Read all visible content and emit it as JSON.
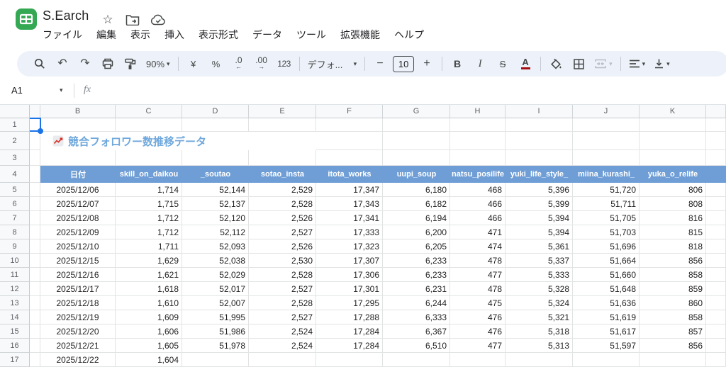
{
  "header": {
    "doc_title": "S.Earch",
    "menu_items": [
      "ファイル",
      "編集",
      "表示",
      "挿入",
      "表示形式",
      "データ",
      "ツール",
      "拡張機能",
      "ヘルプ"
    ],
    "icons": [
      "sheets-logo",
      "star-icon",
      "move-folder-icon",
      "cloud-status-icon"
    ]
  },
  "toolbar": {
    "zoom_level": "90%",
    "currency_label": "¥",
    "percent_label": "%",
    "decrease_decimal_label": ".0",
    "decrease_decimal_arrow": "←",
    "increase_decimal_label": ".00",
    "increase_decimal_arrow": "→",
    "more_formats_label": "123",
    "font_name": "デフォ...",
    "font_size_minus": "−",
    "font_size_value": "10",
    "font_size_plus": "+",
    "bold_label": "B",
    "italic_label": "I",
    "strikethrough_label": "S",
    "text_color_label": "A",
    "undo_glyph": "↶",
    "redo_glyph": "↷",
    "icons": [
      "search-icon",
      "undo-icon",
      "redo-icon",
      "print-icon",
      "paint-format-icon",
      "fill-color-icon",
      "borders-icon",
      "merge-cells-icon",
      "horizontal-align-icon",
      "vertical-align-icon"
    ]
  },
  "formula_bar": {
    "name_box_value": "A1",
    "fx_label": "fx"
  },
  "sheet": {
    "selected_cell": "A1",
    "visible_columns": [
      "B",
      "C",
      "D",
      "E",
      "F",
      "G",
      "H",
      "I",
      "J",
      "K"
    ],
    "visible_rows": [
      "1",
      "2",
      "3",
      "4",
      "5",
      "6",
      "7",
      "8",
      "9",
      "10",
      "11",
      "12",
      "13",
      "14",
      "15",
      "16",
      "17"
    ],
    "title_cell": {
      "icon": "chart-increasing-icon",
      "text": "競合フォロワー数推移データ"
    },
    "table": {
      "headers": [
        "日付",
        "skill_on_daikou",
        "_soutao",
        "sotao_insta",
        "itota_works",
        "uupi_soup",
        "natsu_posilife",
        "yuki_life_style_",
        "miina_kurashi_",
        "yuka_o_relife"
      ],
      "rows": [
        [
          "2025/12/06",
          "1,714",
          "52,144",
          "2,529",
          "17,347",
          "6,180",
          "468",
          "5,396",
          "51,720",
          "806"
        ],
        [
          "2025/12/07",
          "1,715",
          "52,137",
          "2,528",
          "17,343",
          "6,182",
          "466",
          "5,399",
          "51,711",
          "808"
        ],
        [
          "2025/12/08",
          "1,712",
          "52,120",
          "2,526",
          "17,341",
          "6,194",
          "466",
          "5,394",
          "51,705",
          "816"
        ],
        [
          "2025/12/09",
          "1,712",
          "52,112",
          "2,527",
          "17,333",
          "6,200",
          "471",
          "5,394",
          "51,703",
          "815"
        ],
        [
          "2025/12/10",
          "1,711",
          "52,093",
          "2,526",
          "17,323",
          "6,205",
          "474",
          "5,361",
          "51,696",
          "818"
        ],
        [
          "2025/12/15",
          "1,629",
          "52,038",
          "2,530",
          "17,307",
          "6,233",
          "478",
          "5,337",
          "51,664",
          "856"
        ],
        [
          "2025/12/16",
          "1,621",
          "52,029",
          "2,528",
          "17,306",
          "6,233",
          "477",
          "5,333",
          "51,660",
          "858"
        ],
        [
          "2025/12/17",
          "1,618",
          "52,017",
          "2,527",
          "17,301",
          "6,231",
          "478",
          "5,328",
          "51,648",
          "859"
        ],
        [
          "2025/12/18",
          "1,610",
          "52,007",
          "2,528",
          "17,295",
          "6,244",
          "475",
          "5,324",
          "51,636",
          "860"
        ],
        [
          "2025/12/19",
          "1,609",
          "51,995",
          "2,527",
          "17,288",
          "6,333",
          "476",
          "5,321",
          "51,619",
          "858"
        ],
        [
          "2025/12/20",
          "1,606",
          "51,986",
          "2,524",
          "17,284",
          "6,367",
          "476",
          "5,318",
          "51,617",
          "857"
        ],
        [
          "2025/12/21",
          "1,605",
          "51,978",
          "2,524",
          "17,284",
          "6,510",
          "477",
          "5,313",
          "51,597",
          "856"
        ],
        [
          "2025/12/22",
          "1,604",
          "",
          "",
          "",
          "",
          "",
          "",
          "",
          ""
        ]
      ]
    }
  },
  "colors": {
    "table_header_bg": "#6f9ed6",
    "sheet_title_text": "#6fa8dc",
    "selection_blue": "#1a73e8",
    "logo_green": "#34a853",
    "text_color_bar": "#a50e0e",
    "toolbar_bg": "#edf2fa"
  }
}
